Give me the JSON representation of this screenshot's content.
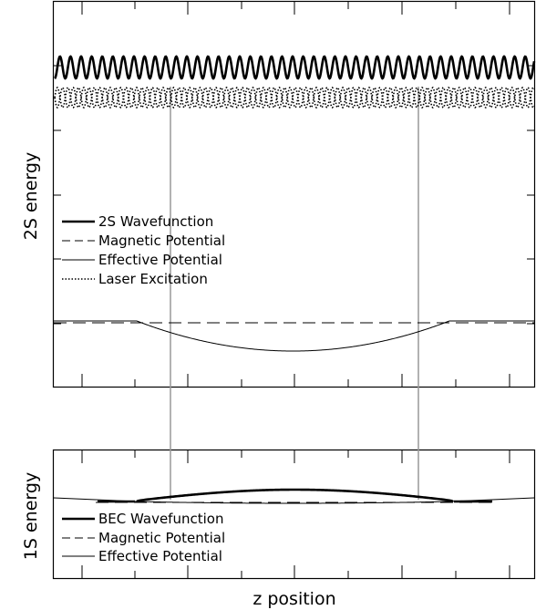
{
  "figure": {
    "x_axis_label": "z position",
    "top_panel": {
      "y_axis_label": "2S energy",
      "legend": [
        {
          "label": "2S Wavefunction",
          "style": "thick"
        },
        {
          "label": "Magnetic Potential",
          "style": "dashed"
        },
        {
          "label": "Effective Potential",
          "style": "solid"
        },
        {
          "label": "Laser Excitation",
          "style": "dotted"
        }
      ]
    },
    "bottom_panel": {
      "y_axis_label": "1S energy",
      "legend": [
        {
          "label": "BEC Wavefunction",
          "style": "thick"
        },
        {
          "label": "Magnetic Potential",
          "style": "dashed"
        },
        {
          "label": "Effective Potential",
          "style": "solid"
        }
      ]
    }
  }
}
